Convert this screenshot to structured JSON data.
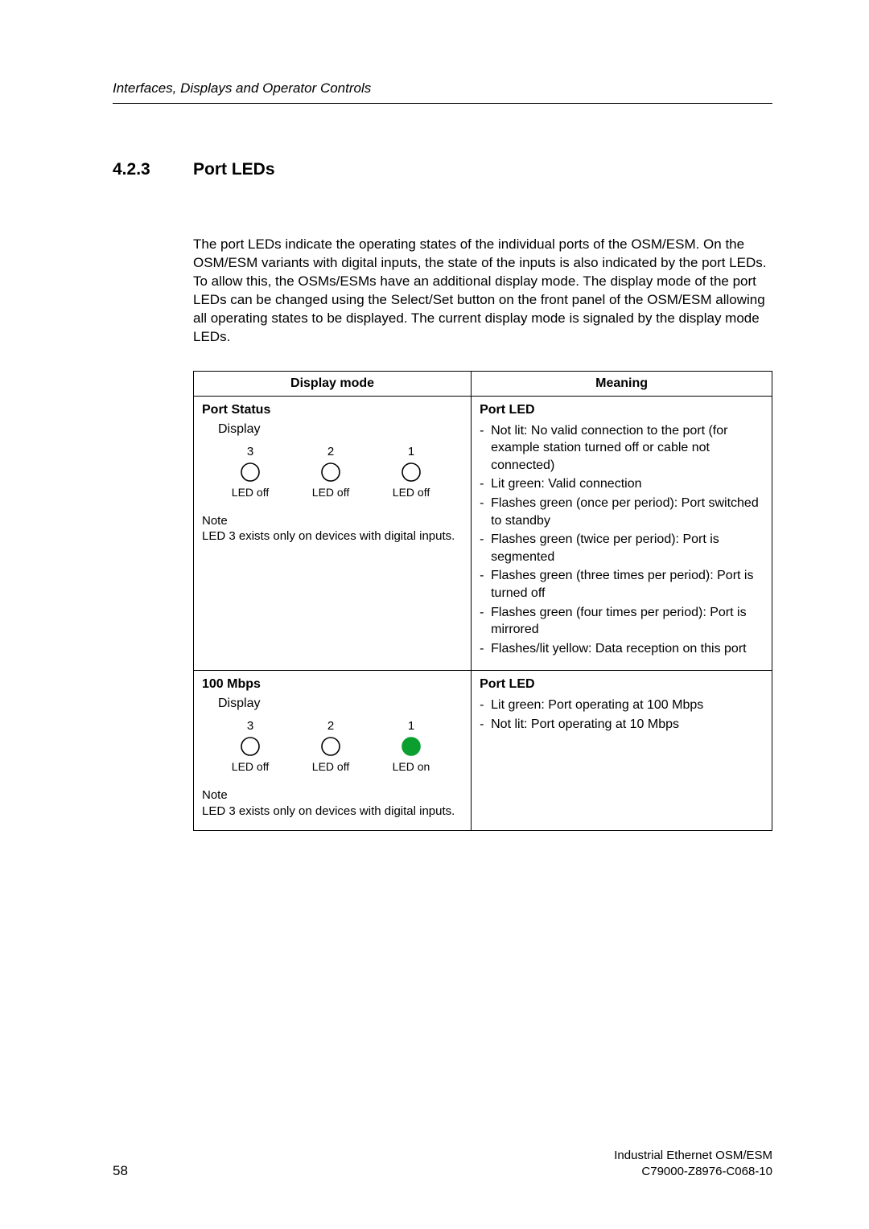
{
  "running_head": "Interfaces, Displays and Operator Controls",
  "section": {
    "number": "4.2.3",
    "title": "Port LEDs"
  },
  "intro": "The port LEDs indicate the operating states of the individual ports of the OSM/ESM. On the OSM/ESM variants with digital inputs, the state of the inputs is also indicated by the port LEDs. To allow this, the OSMs/ESMs have an additional display mode. The display mode of the port LEDs can be changed using the Select/Set button on the front panel of the OSM/ESM allowing all operating states to be displayed. The current display mode is signaled by the display mode LEDs.",
  "table": {
    "headers": {
      "col1": "Display mode",
      "col2": "Meaning"
    },
    "rows": [
      {
        "mode_title": "Port Status",
        "display_label": "Display",
        "leds": [
          {
            "num": "3",
            "on": false,
            "caption": "LED off",
            "fill": "#ffffff",
            "stroke": "#000000"
          },
          {
            "num": "2",
            "on": false,
            "caption": "LED off",
            "fill": "#ffffff",
            "stroke": "#000000"
          },
          {
            "num": "1",
            "on": false,
            "caption": "LED off",
            "fill": "#ffffff",
            "stroke": "#000000"
          }
        ],
        "note_label": "Note",
        "note_text": "LED 3 exists only on devices with digital inputs.",
        "meaning_title": "Port LED",
        "meanings": [
          "Not lit: No valid connection to the port (for example station turned off or cable not connected)",
          "Lit green: Valid connection",
          "Flashes green (once per period): Port switched to standby",
          "Flashes green (twice per period): Port is segmented",
          "Flashes green (three times per period): Port is turned off",
          "Flashes green (four times per period): Port is mirrored",
          "Flashes/lit yellow: Data reception on this port"
        ]
      },
      {
        "mode_title": "100 Mbps",
        "display_label": "Display",
        "leds": [
          {
            "num": "3",
            "on": false,
            "caption": "LED off",
            "fill": "#ffffff",
            "stroke": "#000000"
          },
          {
            "num": "2",
            "on": false,
            "caption": "LED off",
            "fill": "#ffffff",
            "stroke": "#000000"
          },
          {
            "num": "1",
            "on": true,
            "caption": "LED on",
            "fill": "#0a9f2e",
            "stroke": "#0a9f2e"
          }
        ],
        "note_label": "Note",
        "note_text": "LED 3 exists only on devices with digital inputs.",
        "meaning_title": "Port LED",
        "meanings": [
          "Lit green: Port operating at 100 Mbps",
          "Not lit: Port operating at 10 Mbps"
        ]
      }
    ]
  },
  "led_svg": {
    "r": 11,
    "stroke_width": 1.6,
    "size": 26
  },
  "footer": {
    "page_number": "58",
    "right_line1": "Industrial Ethernet OSM/ESM",
    "right_line2": "C79000-Z8976-C068-10"
  },
  "colors": {
    "text": "#000000",
    "background": "#ffffff"
  }
}
